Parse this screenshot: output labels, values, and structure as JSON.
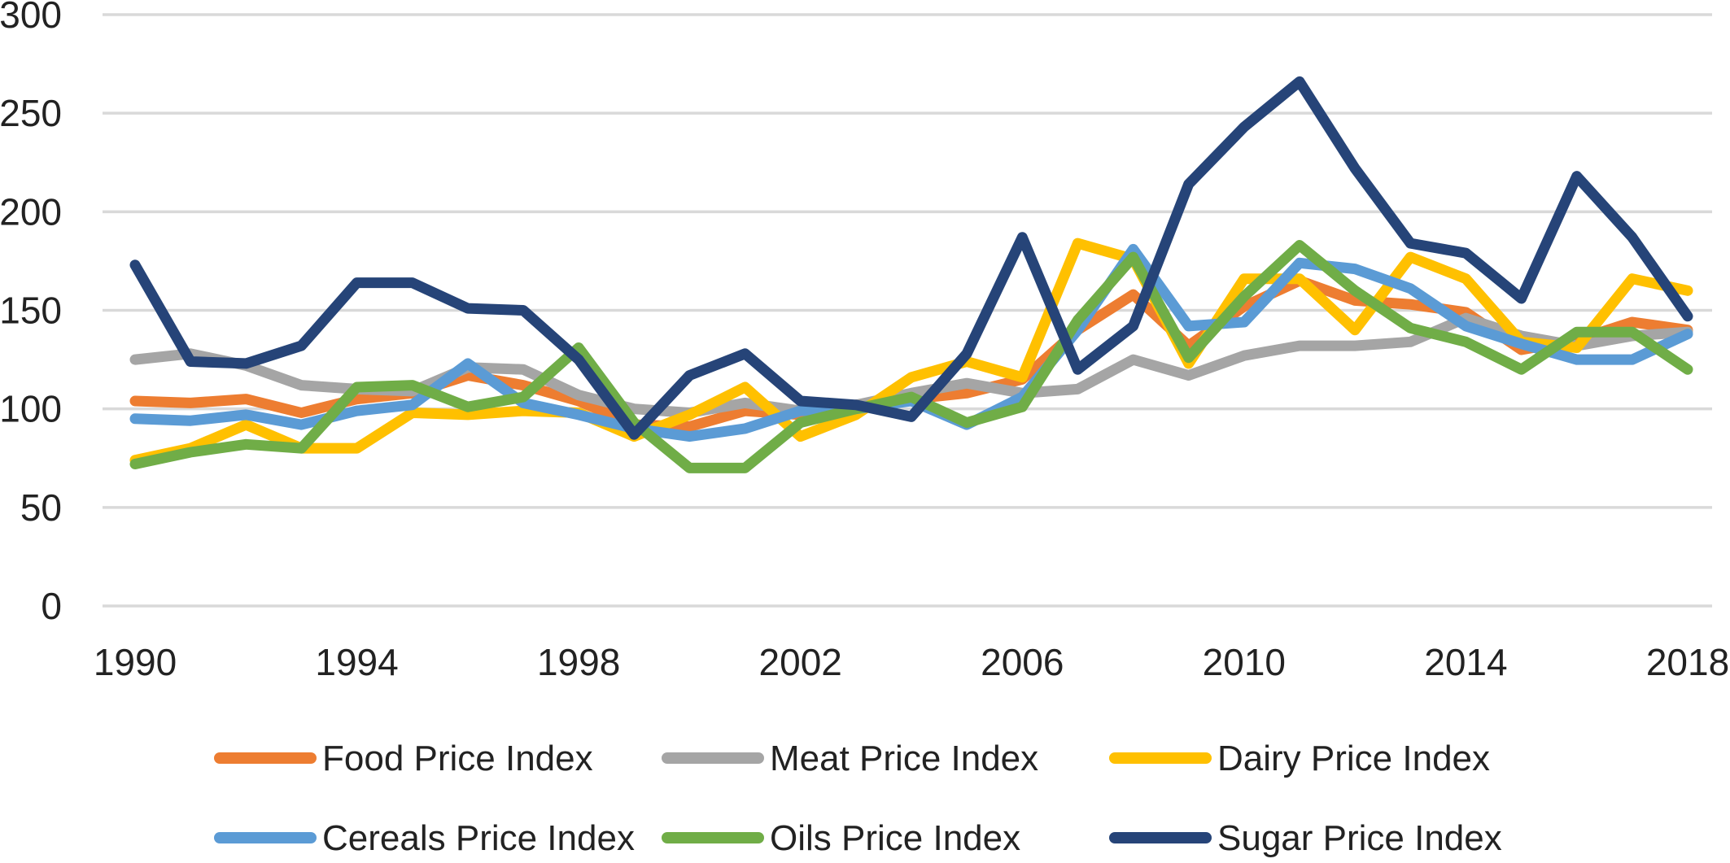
{
  "chart_data": {
    "type": "line",
    "title": "",
    "xlabel": "",
    "ylabel": "",
    "x": [
      1990,
      1991,
      1992,
      1993,
      1994,
      1995,
      1996,
      1997,
      1998,
      1999,
      2000,
      2001,
      2002,
      2003,
      2004,
      2005,
      2006,
      2007,
      2008,
      2009,
      2010,
      2011,
      2012,
      2013,
      2014,
      2015,
      2016,
      2017,
      2018
    ],
    "x_ticks": [
      1990,
      1994,
      1998,
      2002,
      2006,
      2010,
      2014,
      2018
    ],
    "x_tick_labels": [
      "1990",
      "1994",
      "1998",
      "2002",
      "2006",
      "2010",
      "2014",
      "2018"
    ],
    "ylim": [
      0,
      300
    ],
    "y_ticks": [
      0,
      50,
      100,
      150,
      200,
      250,
      300
    ],
    "y_tick_labels": [
      "0",
      "50",
      "100",
      "150",
      "200",
      "250",
      "300"
    ],
    "grid": true,
    "legend_position": "bottom",
    "series": [
      {
        "name": "Food Price Index",
        "color": "#ED7D31",
        "values": [
          104,
          103,
          105,
          98,
          105,
          108,
          117,
          112,
          104,
          92,
          91,
          99,
          97,
          102,
          105,
          108,
          115,
          140,
          158,
          132,
          152,
          165,
          155,
          153,
          149,
          130,
          135,
          144,
          140
        ]
      },
      {
        "name": "Meat Price Index",
        "color": "#A5A5A5",
        "values": [
          125,
          128,
          122,
          112,
          110,
          109,
          121,
          120,
          107,
          100,
          98,
          103,
          99,
          102,
          108,
          113,
          108,
          110,
          125,
          117,
          127,
          132,
          132,
          134,
          146,
          137,
          132,
          137,
          139
        ]
      },
      {
        "name": "Dairy Price Index",
        "color": "#FFC000",
        "values": [
          74,
          80,
          92,
          80,
          80,
          98,
          97,
          99,
          98,
          86,
          97,
          111,
          86,
          97,
          116,
          124,
          116,
          184,
          176,
          123,
          166,
          166,
          140,
          177,
          166,
          134,
          131,
          166,
          160
        ]
      },
      {
        "name": "Cereals Price Index",
        "color": "#5B9BD5",
        "values": [
          95,
          94,
          97,
          92,
          99,
          102,
          123,
          103,
          97,
          90,
          86,
          90,
          99,
          100,
          104,
          92,
          106,
          140,
          181,
          142,
          144,
          174,
          171,
          161,
          142,
          133,
          125,
          125,
          138
        ]
      },
      {
        "name": "Oils Price Index",
        "color": "#70AD47",
        "values": [
          72,
          78,
          82,
          80,
          111,
          112,
          101,
          106,
          131,
          93,
          70,
          70,
          93,
          100,
          106,
          93,
          101,
          145,
          177,
          126,
          157,
          183,
          160,
          141,
          134,
          120,
          139,
          139,
          120
        ]
      },
      {
        "name": "Sugar Price Index",
        "color": "#264478",
        "values": [
          173,
          124,
          123,
          132,
          164,
          164,
          151,
          150,
          125,
          87,
          117,
          128,
          104,
          102,
          96,
          128,
          187,
          120,
          142,
          214,
          243,
          266,
          222,
          184,
          179,
          156,
          218,
          187,
          147
        ]
      }
    ]
  }
}
